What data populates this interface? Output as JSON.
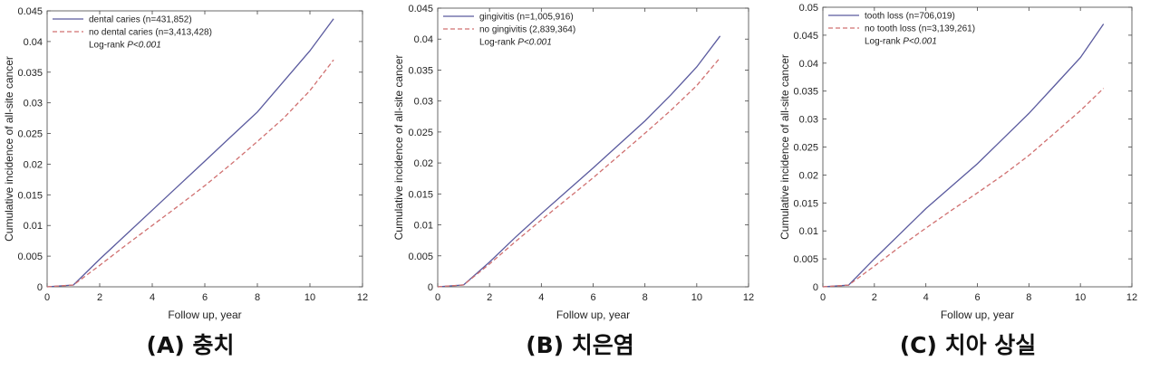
{
  "chart_data": [
    {
      "type": "line",
      "xlabel": "Follow up, year",
      "ylabel": "Cumulative incidence of all-site cancer",
      "xlim": [
        0,
        12
      ],
      "ylim": [
        0,
        0.045
      ],
      "xticks": [
        "0",
        "2",
        "4",
        "6",
        "8",
        "10",
        "12"
      ],
      "yticks": [
        "0",
        "0.005",
        "0.01",
        "0.015",
        "0.02",
        "0.025",
        "0.03",
        "0.035",
        "0.04",
        "0.045"
      ],
      "legend_position": "top-left",
      "logrank_prefix": "Log-rank ",
      "logrank_p": "P<0.001",
      "caption": "(A) 충치",
      "series": [
        {
          "name": "dental caries (n=431,852)",
          "color": "#5a5a9e",
          "style": "solid",
          "x": [
            0,
            1,
            2,
            3,
            4,
            5,
            6,
            7,
            8,
            9,
            10,
            10.9
          ],
          "y": [
            0,
            0.0003,
            0.0045,
            0.0085,
            0.0125,
            0.0165,
            0.0205,
            0.0245,
            0.0285,
            0.0335,
            0.0385,
            0.0437
          ]
        },
        {
          "name": "no dental caries (n=3,413,428)",
          "color": "#d07070",
          "style": "dashed",
          "x": [
            0,
            1,
            2,
            3,
            4,
            5,
            6,
            7,
            8,
            9,
            10,
            10.9
          ],
          "y": [
            0,
            0.0003,
            0.0035,
            0.0068,
            0.01,
            0.0132,
            0.0165,
            0.02,
            0.0237,
            0.0275,
            0.032,
            0.037
          ]
        }
      ]
    },
    {
      "type": "line",
      "xlabel": "Follow up, year",
      "ylabel": "Cumulative incidence of all-site cancer",
      "xlim": [
        0,
        12
      ],
      "ylim": [
        0,
        0.045
      ],
      "xticks": [
        "0",
        "2",
        "4",
        "6",
        "8",
        "10",
        "12"
      ],
      "yticks": [
        "0",
        "0.005",
        "0.01",
        "0.015",
        "0.02",
        "0.025",
        "0.03",
        "0.035",
        "0.04",
        "0.045"
      ],
      "legend_position": "top-left",
      "logrank_prefix": "Log-rank ",
      "logrank_p": "P<0.001",
      "caption": "(B) 치은염",
      "series": [
        {
          "name": "gingivitis (n=1,005,916)",
          "color": "#5a5a9e",
          "style": "solid",
          "x": [
            0,
            1,
            2,
            3,
            4,
            5,
            6,
            7,
            8,
            9,
            10,
            10.9
          ],
          "y": [
            0,
            0.0003,
            0.004,
            0.008,
            0.0118,
            0.0155,
            0.0192,
            0.023,
            0.0268,
            0.031,
            0.0355,
            0.0405
          ]
        },
        {
          "name": "no gingivitis (2,839,364)",
          "color": "#d07070",
          "style": "dashed",
          "x": [
            0,
            1,
            2,
            3,
            4,
            5,
            6,
            7,
            8,
            9,
            10,
            10.9
          ],
          "y": [
            0,
            0.0003,
            0.0037,
            0.0073,
            0.0108,
            0.0142,
            0.0176,
            0.0212,
            0.0248,
            0.0285,
            0.0325,
            0.037
          ]
        }
      ]
    },
    {
      "type": "line",
      "xlabel": "Follow up, year",
      "ylabel": "Cumulative incidence of all-site cancer",
      "xlim": [
        0,
        12
      ],
      "ylim": [
        0,
        0.05
      ],
      "xticks": [
        "0",
        "2",
        "4",
        "6",
        "8",
        "10",
        "12"
      ],
      "yticks": [
        "0",
        "0.005",
        "0.01",
        "0.015",
        "0.02",
        "0.025",
        "0.03",
        "0.035",
        "0.04",
        "0.045",
        "0.05"
      ],
      "legend_position": "top-left",
      "logrank_prefix": "Log-rank ",
      "logrank_p": "P<0.001",
      "caption": "(C) 치아 상실",
      "series": [
        {
          "name": "tooth loss (n=706,019)",
          "color": "#5a5a9e",
          "style": "solid",
          "x": [
            0,
            1,
            2,
            3,
            4,
            5,
            6,
            7,
            8,
            9,
            10,
            10.9
          ],
          "y": [
            0,
            0.0003,
            0.005,
            0.0095,
            0.014,
            0.018,
            0.022,
            0.0265,
            0.031,
            0.036,
            0.041,
            0.047
          ]
        },
        {
          "name": "no tooth loss (n=3,139,261)",
          "color": "#d07070",
          "style": "dashed",
          "x": [
            0,
            1,
            2,
            3,
            4,
            5,
            6,
            7,
            8,
            9,
            10,
            10.9
          ],
          "y": [
            0,
            0.0003,
            0.0037,
            0.0072,
            0.0105,
            0.0137,
            0.0168,
            0.02,
            0.0235,
            0.0275,
            0.0315,
            0.0355
          ]
        }
      ]
    }
  ]
}
